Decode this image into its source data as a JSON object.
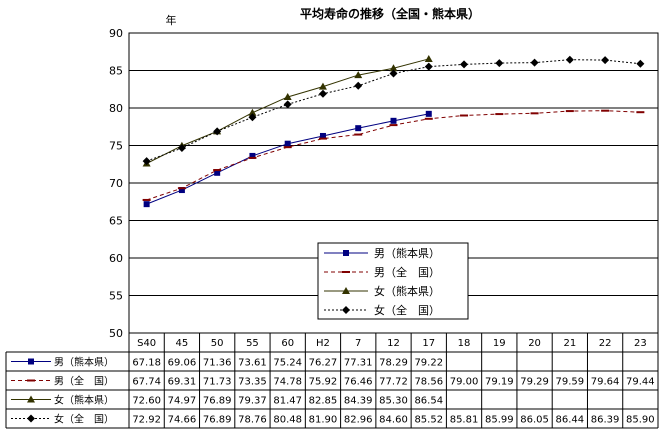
{
  "chart_data": {
    "type": "line",
    "title": "平均寿命の推移（全国・熊本県）",
    "ylabel": "年",
    "ylim": [
      50,
      90
    ],
    "yticks": [
      50,
      55,
      60,
      65,
      70,
      75,
      80,
      85,
      90
    ],
    "grid": true,
    "legend_position": "center-right",
    "categories": [
      "S40",
      "45",
      "50",
      "55",
      "60",
      "H2",
      "7",
      "12",
      "17",
      "18",
      "19",
      "20",
      "21",
      "22",
      "23"
    ],
    "series": [
      {
        "name": "男（熊本県）",
        "color": "#000080",
        "line_style": "solid",
        "marker": "square",
        "values": [
          67.18,
          69.06,
          71.36,
          73.61,
          75.24,
          76.27,
          77.31,
          78.29,
          79.22,
          null,
          null,
          null,
          null,
          null,
          null
        ],
        "labels": [
          "67.18",
          "69.06",
          "71.36",
          "73.61",
          "75.24",
          "76.27",
          "77.31",
          "78.29",
          "79.22",
          "",
          "",
          "",
          "",
          "",
          ""
        ]
      },
      {
        "name": "男（全　国）",
        "color": "#800000",
        "line_style": "dashed",
        "marker": "dash",
        "values": [
          67.74,
          69.31,
          71.73,
          73.35,
          74.78,
          75.92,
          76.46,
          77.72,
          78.56,
          79.0,
          79.19,
          79.29,
          79.59,
          79.64,
          79.44
        ],
        "labels": [
          "67.74",
          "69.31",
          "71.73",
          "73.35",
          "74.78",
          "75.92",
          "76.46",
          "77.72",
          "78.56",
          "79.00",
          "79.19",
          "79.29",
          "79.59",
          "79.64",
          "79.44"
        ]
      },
      {
        "name": "女（熊本県）",
        "color": "#333300",
        "line_style": "solid",
        "marker": "triangle",
        "values": [
          72.6,
          74.97,
          76.89,
          79.37,
          81.47,
          82.85,
          84.39,
          85.3,
          86.54,
          null,
          null,
          null,
          null,
          null,
          null
        ],
        "labels": [
          "72.60",
          "74.97",
          "76.89",
          "79.37",
          "81.47",
          "82.85",
          "84.39",
          "85.30",
          "86.54",
          "",
          "",
          "",
          "",
          "",
          ""
        ]
      },
      {
        "name": "女（全　国）",
        "color": "#000000",
        "line_style": "dotted",
        "marker": "diamond",
        "values": [
          72.92,
          74.66,
          76.89,
          78.76,
          80.48,
          81.9,
          82.96,
          84.6,
          85.52,
          85.81,
          85.99,
          86.05,
          86.44,
          86.39,
          85.9
        ],
        "labels": [
          "72.92",
          "74.66",
          "76.89",
          "78.76",
          "80.48",
          "81.90",
          "82.96",
          "84.60",
          "85.52",
          "85.81",
          "85.99",
          "86.05",
          "86.44",
          "86.39",
          "85.90"
        ]
      }
    ],
    "data_table": true
  }
}
